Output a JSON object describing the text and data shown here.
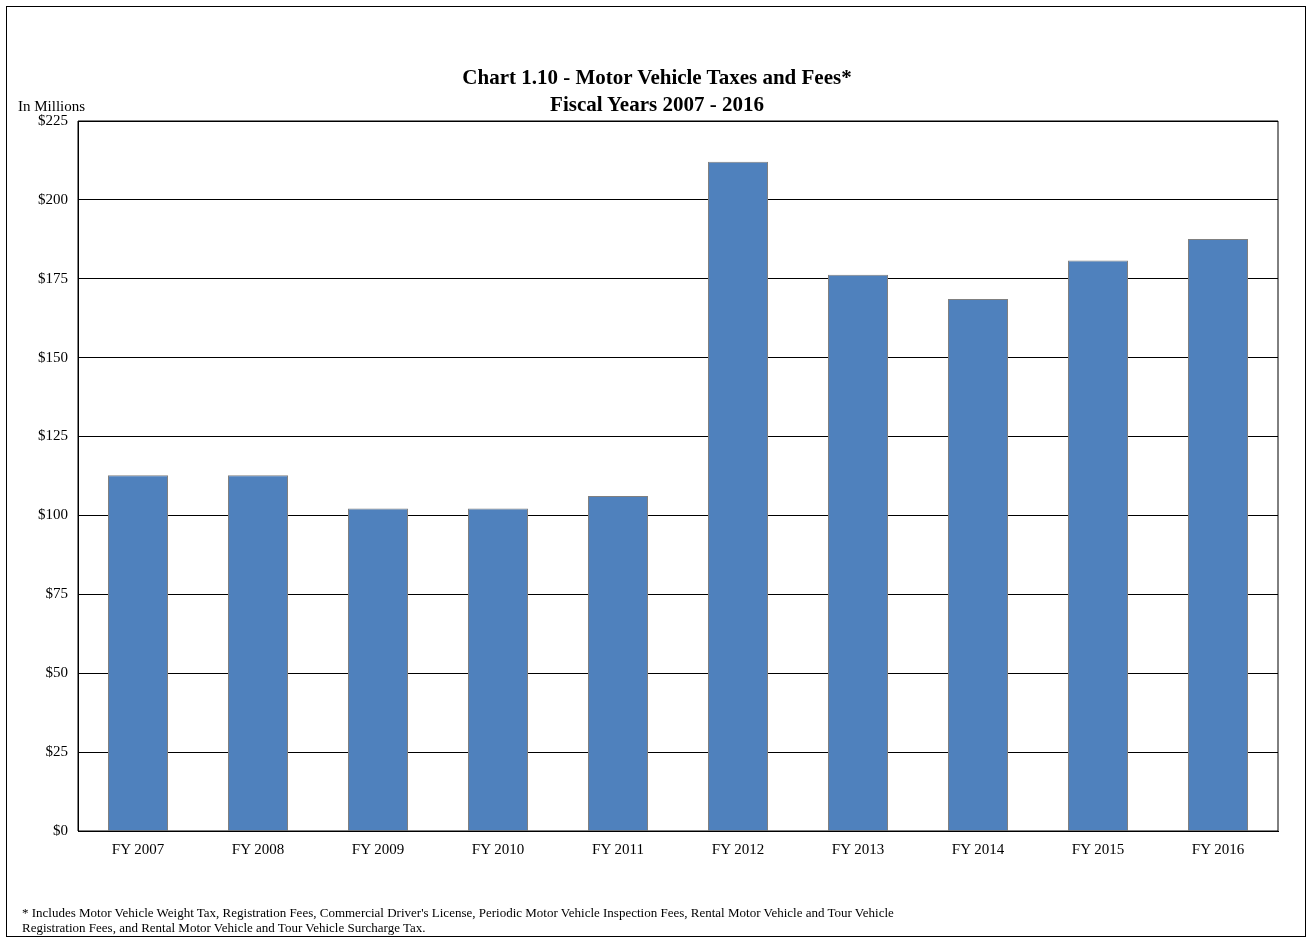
{
  "chart_data": {
    "type": "bar",
    "title": "Chart 1.10 - Motor Vehicle Taxes and Fees*",
    "subtitle": "Fiscal Years 2007 - 2016",
    "ylabel": "In Millions",
    "categories": [
      "FY 2007",
      "FY 2008",
      "FY 2009",
      "FY 2010",
      "FY 2011",
      "FY 2012",
      "FY 2013",
      "FY 2014",
      "FY 2015",
      "FY 2016"
    ],
    "values": [
      112.7,
      112.7,
      102.2,
      102.2,
      106.2,
      212.1,
      176.3,
      168.6,
      180.8,
      187.6
    ],
    "color": "#4f81bd",
    "ylim": [
      0,
      225
    ],
    "yticks": [
      {
        "value": 0,
        "label": "$0"
      },
      {
        "value": 25,
        "label": "$25"
      },
      {
        "value": 50,
        "label": "$50"
      },
      {
        "value": 75,
        "label": "$75"
      },
      {
        "value": 100,
        "label": "$100"
      },
      {
        "value": 125,
        "label": "$125"
      },
      {
        "value": 150,
        "label": "$150"
      },
      {
        "value": 175,
        "label": "$175"
      },
      {
        "value": 200,
        "label": "$200"
      },
      {
        "value": 225,
        "label": "$225"
      }
    ],
    "grid": "y",
    "legend": false,
    "annotations": [
      "* Includes Motor Vehicle Weight Tax, Registration Fees, Commercial Driver's License, Periodic Motor Vehicle Inspection Fees, Rental  Motor Vehicle and Tour Vehicle Registration Fees, and Rental Motor Vehicle and Tour Vehicle Surcharge Tax."
    ]
  }
}
